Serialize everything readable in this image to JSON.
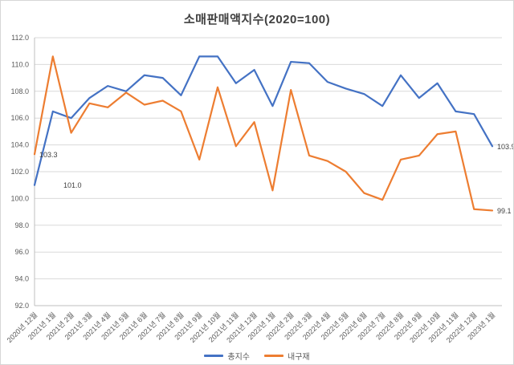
{
  "chart_data": {
    "type": "line",
    "title": "소매판매액지수(2020=100)",
    "categories": [
      "2020년 12월",
      "2021년 1월",
      "2021년 2월",
      "2021년 3월",
      "2021년 4월",
      "2021년 5월",
      "2021년 6월",
      "2021년 7월",
      "2021년 8월",
      "2021년 9월",
      "2021년 10월",
      "2021년 11월",
      "2021년 12월",
      "2022년 1월",
      "2022년 2월",
      "2022년 3월",
      "2022년 4월",
      "2022년 5월",
      "2022년 6월",
      "2022년 7월",
      "2022년 8월",
      "2022년 9월",
      "2022년 10월",
      "2022년 11월",
      "2022년 12월",
      "2023년 1월"
    ],
    "series": [
      {
        "name": "총지수",
        "color": "#4472C4",
        "values": [
          101.0,
          106.5,
          106.0,
          107.5,
          108.4,
          108.0,
          109.2,
          109.0,
          107.7,
          110.6,
          110.6,
          108.6,
          109.6,
          106.9,
          110.2,
          110.1,
          108.7,
          108.2,
          107.8,
          106.9,
          109.2,
          107.5,
          108.6,
          106.5,
          106.3,
          103.9
        ]
      },
      {
        "name": "내구재",
        "color": "#ED7D31",
        "values": [
          103.3,
          110.6,
          104.9,
          107.1,
          106.8,
          107.9,
          107.0,
          107.3,
          106.5,
          102.9,
          108.3,
          103.9,
          105.7,
          100.6,
          108.1,
          103.2,
          102.8,
          102.0,
          100.4,
          99.9,
          102.9,
          103.2,
          104.8,
          105.0,
          99.2,
          99.1
        ]
      }
    ],
    "ylim": [
      92.0,
      112.0
    ],
    "ytick_step": 2,
    "ytick_labels": [
      "92.0",
      "94.0",
      "96.0",
      "98.0",
      "100.0",
      "102.0",
      "104.0",
      "106.0",
      "108.0",
      "110.0",
      "112.0"
    ],
    "grid": true,
    "legend_position": "bottom",
    "point_labels": [
      {
        "series": "총지수",
        "category": "2020년 12월",
        "text": "101.0"
      },
      {
        "series": "내구재",
        "category": "2020년 12월",
        "text": "103.3"
      },
      {
        "series": "총지수",
        "category": "2023년 1월",
        "text": "103.9"
      },
      {
        "series": "내구재",
        "category": "2023년 1월",
        "text": "99.1"
      }
    ],
    "colors": {
      "gridline": "#D9D9D9",
      "axis": "#BFBFBF",
      "tick_text": "#595959",
      "title_text": "#404040",
      "data_label_text": "#404040"
    }
  },
  "legend": {
    "items": [
      {
        "label": "총지수",
        "color": "#4472C4"
      },
      {
        "label": "내구재",
        "color": "#ED7D31"
      }
    ]
  }
}
